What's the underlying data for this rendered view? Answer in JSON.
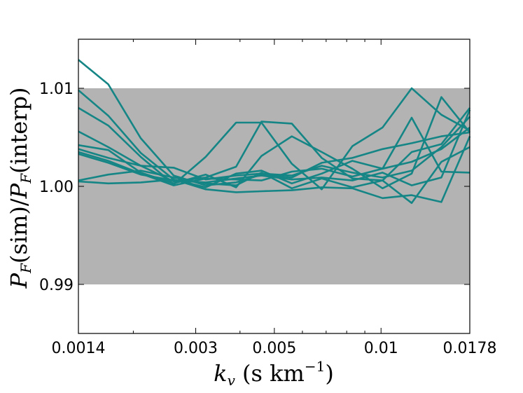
{
  "chart_data": {
    "type": "line",
    "xscale": "log",
    "xlim": [
      0.0014,
      0.0178
    ],
    "ylim": [
      0.985,
      1.015
    ],
    "x_ticks": [
      0.0014,
      0.003,
      0.005,
      0.01,
      0.0178
    ],
    "x_tick_labels": [
      "0.0014",
      "0.003",
      "0.005",
      "0.01",
      "0.0178"
    ],
    "y_ticks": [
      0.99,
      1.0,
      1.01
    ],
    "y_tick_labels": [
      "0.99",
      "1.00",
      "1.01"
    ],
    "xlabel": "k_v (s km^-1)",
    "ylabel": "P_F(sim)/P_F(interp)",
    "band": {
      "y0": 0.99,
      "y1": 1.01,
      "color": "#b3b3b3"
    },
    "line_color": "#158585",
    "grid": false,
    "legend": "none",
    "x": [
      0.0014,
      0.0017,
      0.0021,
      0.0026,
      0.0032,
      0.0039,
      0.0046,
      0.0056,
      0.0068,
      0.0083,
      0.0101,
      0.0122,
      0.0148,
      0.0178
    ],
    "series": [
      {
        "values": [
          1.0129,
          1.0104,
          1.0049,
          1.0011,
          1.0001,
          1.0004,
          1.0012,
          1.0009,
          1.0024,
          1.0029,
          1.0038,
          1.0044,
          1.0051,
          1.0055
        ]
      },
      {
        "values": [
          1.0098,
          1.0072,
          1.0034,
          1.0007,
          0.9999,
          1.0013,
          1.0016,
          1.0003,
          1.0013,
          1.0026,
          1.0018,
          1.007,
          1.0015,
          1.0014
        ]
      },
      {
        "values": [
          1.008,
          1.0062,
          1.003,
          1.0002,
          1.003,
          1.0065,
          1.0065,
          1.0023,
          0.9997,
          1.0041,
          1.006,
          1.01,
          1.0073,
          1.0057
        ]
      },
      {
        "values": [
          1.0056,
          1.004,
          1.0021,
          1.0005,
          1.0009,
          1.002,
          1.0066,
          1.0064,
          1.0029,
          1.0008,
          1.0006,
          1.0035,
          1.0043,
          1.008
        ]
      },
      {
        "values": [
          1.0042,
          1.0037,
          1.0014,
          1.0003,
          1.0012,
          0.9999,
          1.0031,
          1.0051,
          1.0035,
          1.0018,
          0.9998,
          1.0013,
          1.0091,
          1.0055
        ]
      },
      {
        "values": [
          1.0038,
          1.0029,
          1.0021,
          1.0019,
          1.0007,
          1.0011,
          1.0013,
          1.0011,
          1.0021,
          1.0014,
          1.0009,
          1.0016,
          1.004,
          1.0071
        ]
      },
      {
        "values": [
          1.0035,
          1.0026,
          1.0013,
          1.0001,
          1.0008,
          1.0007,
          1.0006,
          1.0015,
          1.0018,
          1.001,
          1.0018,
          1.0025,
          1.0038,
          1.006
        ]
      },
      {
        "values": [
          1.0033,
          1.0024,
          1.0012,
          1.0006,
          1.0004,
          1.0008,
          1.0011,
          1.0007,
          1.0009,
          1.0006,
          1.0014,
          1.0001,
          1.0009,
          1.0078
        ]
      },
      {
        "values": [
          1.0006,
          1.0012,
          1.0016,
          1.0009,
          1.0003,
          1.0001,
          1.0014,
          0.9998,
          1.0008,
          0.9999,
          1.0006,
          0.9983,
          1.0025,
          1.004
        ]
      },
      {
        "values": [
          1.0005,
          1.0003,
          1.0004,
          1.0007,
          0.9997,
          0.9994,
          0.9995,
          0.9996,
          0.9999,
          0.9998,
          0.9988,
          0.9991,
          0.9984,
          1.0051
        ]
      }
    ]
  }
}
